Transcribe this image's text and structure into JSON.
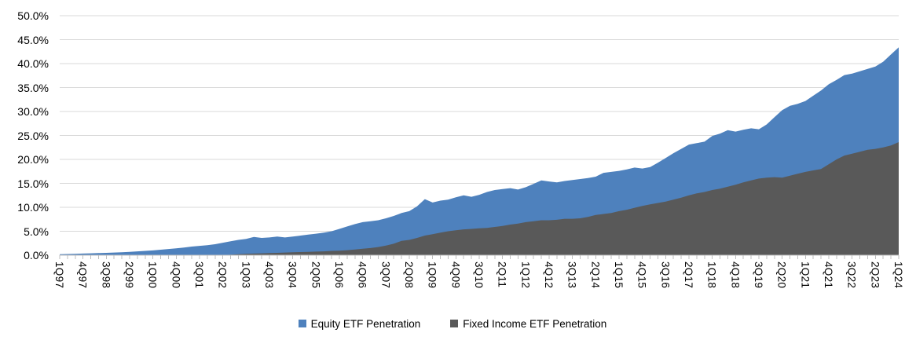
{
  "chart_data": {
    "type": "area",
    "title": "",
    "stacking": "overlaid-from-zero (gray series drawn in front of blue)",
    "grid": "horizontal",
    "legend_position": "bottom-center",
    "x_axis": {
      "start": "1Q97",
      "end": "1Q24",
      "unit": "quarter",
      "tick_every_n_quarters": 3,
      "tick_labels": [
        "1Q97",
        "4Q97",
        "3Q98",
        "2Q99",
        "1Q00",
        "4Q00",
        "3Q01",
        "2Q02",
        "1Q03",
        "4Q03",
        "3Q04",
        "2Q05",
        "1Q06",
        "4Q06",
        "3Q07",
        "2Q08",
        "1Q09",
        "4Q09",
        "3Q10",
        "2Q11",
        "1Q12",
        "4Q12",
        "3Q13",
        "2Q14",
        "1Q15",
        "4Q15",
        "3Q16",
        "2Q17",
        "1Q18",
        "4Q18",
        "3Q19",
        "2Q20",
        "1Q21",
        "4Q21",
        "3Q22",
        "2Q23",
        "1Q24"
      ]
    },
    "y_axis": {
      "min": 0,
      "max": 50,
      "step": 5,
      "tick_labels": [
        "0.0%",
        "5.0%",
        "10.0%",
        "15.0%",
        "20.0%",
        "25.0%",
        "30.0%",
        "35.0%",
        "40.0%",
        "45.0%",
        "50.0%"
      ]
    },
    "series": [
      {
        "name": "Equity ETF Penetration",
        "color": "#4E81BD",
        "values": [
          0.2,
          0.25,
          0.3,
          0.35,
          0.4,
          0.45,
          0.5,
          0.55,
          0.6,
          0.7,
          0.8,
          0.9,
          1.0,
          1.15,
          1.3,
          1.45,
          1.6,
          1.8,
          1.95,
          2.1,
          2.3,
          2.6,
          2.9,
          3.2,
          3.4,
          3.8,
          3.6,
          3.7,
          3.9,
          3.7,
          3.9,
          4.1,
          4.3,
          4.5,
          4.7,
          5.0,
          5.5,
          6.0,
          6.5,
          6.9,
          7.1,
          7.3,
          7.7,
          8.2,
          8.8,
          9.2,
          10.2,
          11.7,
          11.0,
          11.4,
          11.6,
          12.1,
          12.5,
          12.2,
          12.6,
          13.2,
          13.6,
          13.8,
          14.0,
          13.7,
          14.2,
          14.9,
          15.6,
          15.4,
          15.2,
          15.5,
          15.7,
          15.9,
          16.1,
          16.4,
          17.2,
          17.4,
          17.6,
          17.9,
          18.3,
          18.1,
          18.4,
          19.3,
          20.3,
          21.3,
          22.2,
          23.1,
          23.4,
          23.7,
          24.9,
          25.4,
          26.1,
          25.8,
          26.2,
          26.5,
          26.3,
          27.3,
          28.8,
          30.3,
          31.2,
          31.6,
          32.2,
          33.3,
          34.4,
          35.7,
          36.6,
          37.6,
          37.9,
          38.4,
          38.9,
          39.4,
          40.4,
          41.9,
          43.4
        ]
      },
      {
        "name": "Fixed Income ETF Penetration",
        "color": "#595959",
        "values": [
          0,
          0,
          0,
          0,
          0,
          0,
          0,
          0,
          0,
          0,
          0,
          0,
          0,
          0,
          0,
          0,
          0,
          0,
          0,
          0,
          0,
          0,
          0.1,
          0.2,
          0.3,
          0.35,
          0.4,
          0.45,
          0.5,
          0.55,
          0.6,
          0.65,
          0.7,
          0.75,
          0.8,
          0.9,
          0.95,
          1.05,
          1.2,
          1.35,
          1.5,
          1.7,
          2.0,
          2.4,
          3.0,
          3.2,
          3.6,
          4.1,
          4.4,
          4.7,
          5.0,
          5.2,
          5.4,
          5.5,
          5.6,
          5.7,
          5.9,
          6.1,
          6.4,
          6.6,
          6.9,
          7.1,
          7.3,
          7.3,
          7.4,
          7.6,
          7.6,
          7.7,
          8.0,
          8.4,
          8.6,
          8.8,
          9.2,
          9.5,
          9.9,
          10.3,
          10.6,
          10.9,
          11.2,
          11.6,
          12.0,
          12.5,
          12.9,
          13.2,
          13.6,
          13.9,
          14.3,
          14.7,
          15.2,
          15.6,
          16.0,
          16.2,
          16.3,
          16.2,
          16.6,
          17.0,
          17.4,
          17.7,
          18.0,
          19.0,
          20.0,
          20.8,
          21.2,
          21.6,
          22.0,
          22.2,
          22.5,
          22.9,
          23.6
        ]
      }
    ],
    "colors": {
      "equity": "#4E81BD",
      "fixed_income": "#595959",
      "gridline": "#D9D9D9",
      "axis": "#BFBFBF",
      "text": "#000000",
      "background": "#FFFFFF"
    }
  },
  "legend": {
    "equity_label": "Equity ETF Penetration",
    "fixed_income_label": "Fixed Income ETF Penetration"
  }
}
